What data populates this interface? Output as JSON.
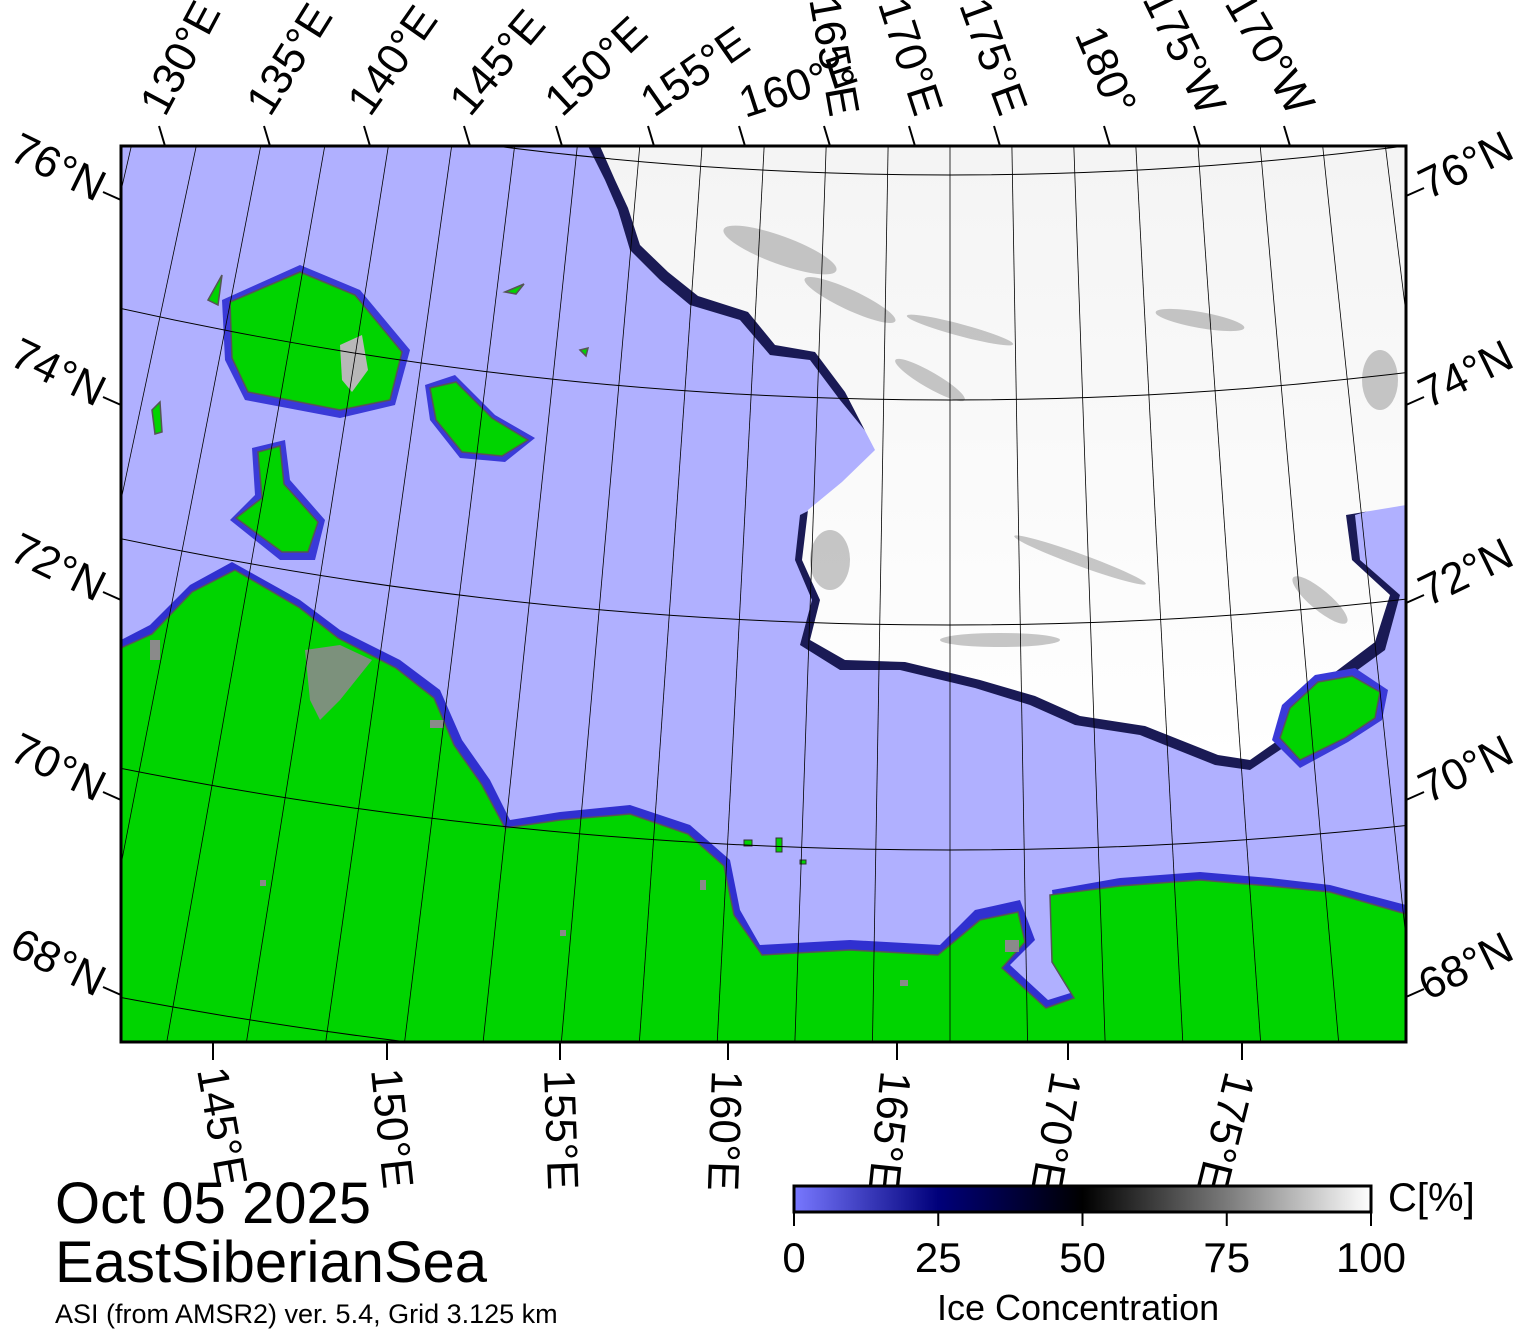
{
  "map": {
    "region": "EastSiberianSea",
    "date": "Oct 05 2025",
    "source": "ASI (from AMSR2) ver. 5.4,  Grid 3.125 km",
    "colors": {
      "land": "#00d400",
      "open_water": "#b0b0ff",
      "coast_shadow": "#808080",
      "grid_line": "#000000"
    },
    "top_longitudes": [
      "130°E",
      "135°E",
      "140°E",
      "145°E",
      "150°E",
      "155°E",
      "160°E",
      "165°E",
      "170°E",
      "175°E",
      "180°",
      "175°W",
      "170°W"
    ],
    "bottom_longitudes": [
      "145°E",
      "150°E",
      "155°E",
      "160°E",
      "165°E",
      "170°E",
      "175°E"
    ],
    "left_latitudes": [
      "76°N",
      "74°N",
      "72°N",
      "70°N",
      "68°N"
    ],
    "right_latitudes": [
      "76°N",
      "74°N",
      "72°N",
      "70°N",
      "68°N"
    ]
  },
  "colorbar": {
    "title": "Ice Concentration",
    "unit": "C[%]",
    "ticks": [
      "0",
      "25",
      "50",
      "75",
      "100"
    ],
    "stops": [
      {
        "value": 0,
        "color": "#7878ff"
      },
      {
        "value": 25,
        "color": "#00007a"
      },
      {
        "value": 50,
        "color": "#000000"
      },
      {
        "value": 75,
        "color": "#7a7a7a"
      },
      {
        "value": 100,
        "color": "#ffffff"
      }
    ]
  }
}
